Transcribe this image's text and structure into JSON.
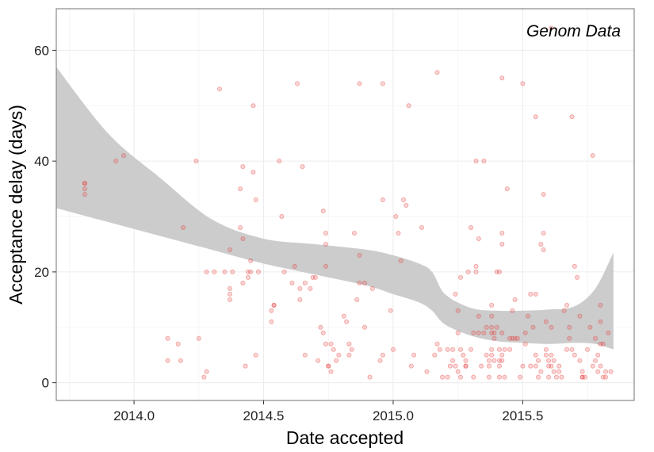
{
  "chart_data": {
    "type": "scatter",
    "xlabel": "Date accepted",
    "ylabel": "Acceptance delay (days)",
    "annotation": "Genom Data",
    "xlim": [
      2013.7,
      2015.93
    ],
    "ylim": [
      -3.2,
      67.5
    ],
    "x_ticks": [
      2014.0,
      2014.5,
      2015.0,
      2015.5
    ],
    "x_tick_labels": [
      "2014.0",
      "2014.5",
      "2015.0",
      "2015.5"
    ],
    "y_ticks": [
      0,
      20,
      40,
      60
    ],
    "y_tick_labels": [
      "0",
      "20",
      "40",
      "60"
    ],
    "grid": true,
    "colors": {
      "points": "#e8413e",
      "band": "#cccccc",
      "panel_border": "#888888",
      "grid": "#ececec"
    },
    "series": [
      {
        "points": [
          [
            2013.81,
            36
          ],
          [
            2013.81,
            35
          ],
          [
            2013.81,
            34
          ],
          [
            2013.81,
            36
          ],
          [
            2013.93,
            40
          ],
          [
            2013.96,
            41
          ],
          [
            2014.13,
            8
          ],
          [
            2014.13,
            4
          ],
          [
            2014.17,
            7
          ],
          [
            2014.18,
            4
          ],
          [
            2014.19,
            28
          ],
          [
            2014.24,
            40
          ],
          [
            2014.25,
            8
          ],
          [
            2014.27,
            1
          ],
          [
            2014.28,
            20
          ],
          [
            2014.28,
            2
          ],
          [
            2014.31,
            20
          ],
          [
            2014.33,
            53
          ],
          [
            2014.35,
            20
          ],
          [
            2014.37,
            24
          ],
          [
            2014.37,
            17
          ],
          [
            2014.37,
            15
          ],
          [
            2014.37,
            16
          ],
          [
            2014.38,
            20
          ],
          [
            2014.41,
            35
          ],
          [
            2014.41,
            28
          ],
          [
            2014.42,
            39
          ],
          [
            2014.42,
            26
          ],
          [
            2014.42,
            18
          ],
          [
            2014.43,
            3
          ],
          [
            2014.44,
            20
          ],
          [
            2014.44,
            19
          ],
          [
            2014.45,
            20
          ],
          [
            2014.45,
            22
          ],
          [
            2014.46,
            50
          ],
          [
            2014.46,
            38
          ],
          [
            2014.47,
            33
          ],
          [
            2014.47,
            5
          ],
          [
            2014.48,
            20
          ],
          [
            2014.53,
            13
          ],
          [
            2014.53,
            11
          ],
          [
            2014.54,
            14
          ],
          [
            2014.54,
            14
          ],
          [
            2014.56,
            40
          ],
          [
            2014.57,
            30
          ],
          [
            2014.58,
            20
          ],
          [
            2014.61,
            18
          ],
          [
            2014.62,
            21
          ],
          [
            2014.63,
            54
          ],
          [
            2014.64,
            17
          ],
          [
            2014.64,
            15
          ],
          [
            2014.65,
            39
          ],
          [
            2014.66,
            18
          ],
          [
            2014.66,
            5
          ],
          [
            2014.68,
            17
          ],
          [
            2014.69,
            19
          ],
          [
            2014.7,
            19
          ],
          [
            2014.71,
            4
          ],
          [
            2014.72,
            10
          ],
          [
            2014.73,
            31
          ],
          [
            2014.73,
            9
          ],
          [
            2014.74,
            21
          ],
          [
            2014.74,
            27
          ],
          [
            2014.74,
            25
          ],
          [
            2014.74,
            7
          ],
          [
            2014.75,
            3
          ],
          [
            2014.75,
            3
          ],
          [
            2014.76,
            2
          ],
          [
            2014.76,
            7
          ],
          [
            2014.77,
            6
          ],
          [
            2014.78,
            4
          ],
          [
            2014.79,
            5
          ],
          [
            2014.81,
            12
          ],
          [
            2014.82,
            11
          ],
          [
            2014.83,
            5
          ],
          [
            2014.83,
            7
          ],
          [
            2014.84,
            6
          ],
          [
            2014.85,
            27
          ],
          [
            2014.86,
            15
          ],
          [
            2014.87,
            23
          ],
          [
            2014.87,
            18
          ],
          [
            2014.87,
            54
          ],
          [
            2014.89,
            18
          ],
          [
            2014.89,
            10
          ],
          [
            2014.91,
            1
          ],
          [
            2014.92,
            17
          ],
          [
            2014.95,
            4
          ],
          [
            2014.96,
            33
          ],
          [
            2014.96,
            5
          ],
          [
            2014.96,
            54
          ],
          [
            2014.99,
            13
          ],
          [
            2015.0,
            6
          ],
          [
            2015.01,
            30
          ],
          [
            2015.02,
            27
          ],
          [
            2015.03,
            22
          ],
          [
            2015.04,
            33
          ],
          [
            2015.05,
            32
          ],
          [
            2015.06,
            50
          ],
          [
            2015.07,
            3
          ],
          [
            2015.08,
            5
          ],
          [
            2015.11,
            28
          ],
          [
            2015.13,
            2
          ],
          [
            2015.16,
            5
          ],
          [
            2015.17,
            56
          ],
          [
            2015.17,
            7
          ],
          [
            2015.18,
            6
          ],
          [
            2015.19,
            1
          ],
          [
            2015.21,
            1
          ],
          [
            2015.21,
            6
          ],
          [
            2015.22,
            3
          ],
          [
            2015.23,
            4
          ],
          [
            2015.23,
            6
          ],
          [
            2015.24,
            16
          ],
          [
            2015.24,
            3
          ],
          [
            2015.25,
            13
          ],
          [
            2015.25,
            9
          ],
          [
            2015.25,
            2
          ],
          [
            2015.26,
            1
          ],
          [
            2015.26,
            19
          ],
          [
            2015.26,
            6
          ],
          [
            2015.27,
            5
          ],
          [
            2015.28,
            4
          ],
          [
            2015.28,
            3
          ],
          [
            2015.28,
            3
          ],
          [
            2015.29,
            20
          ],
          [
            2015.3,
            28
          ],
          [
            2015.3,
            6
          ],
          [
            2015.31,
            9
          ],
          [
            2015.31,
            1
          ],
          [
            2015.32,
            40
          ],
          [
            2015.32,
            21
          ],
          [
            2015.32,
            20
          ],
          [
            2015.33,
            12
          ],
          [
            2015.33,
            26
          ],
          [
            2015.33,
            9
          ],
          [
            2015.34,
            3
          ],
          [
            2015.35,
            40
          ],
          [
            2015.35,
            9
          ],
          [
            2015.36,
            5
          ],
          [
            2015.36,
            10
          ],
          [
            2015.37,
            4
          ],
          [
            2015.37,
            3
          ],
          [
            2015.37,
            1
          ],
          [
            2015.38,
            14
          ],
          [
            2015.38,
            12
          ],
          [
            2015.38,
            10
          ],
          [
            2015.38,
            9
          ],
          [
            2015.38,
            6
          ],
          [
            2015.38,
            5
          ],
          [
            2015.39,
            9
          ],
          [
            2015.39,
            8
          ],
          [
            2015.39,
            4
          ],
          [
            2015.4,
            20
          ],
          [
            2015.4,
            10
          ],
          [
            2015.41,
            20
          ],
          [
            2015.41,
            6
          ],
          [
            2015.41,
            4
          ],
          [
            2015.41,
            3
          ],
          [
            2015.41,
            1
          ],
          [
            2015.42,
            55
          ],
          [
            2015.42,
            27
          ],
          [
            2015.42,
            25
          ],
          [
            2015.42,
            9
          ],
          [
            2015.42,
            5
          ],
          [
            2015.42,
            4
          ],
          [
            2015.43,
            1
          ],
          [
            2015.43,
            6
          ],
          [
            2015.44,
            35
          ],
          [
            2015.45,
            8
          ],
          [
            2015.45,
            6
          ],
          [
            2015.46,
            13
          ],
          [
            2015.46,
            8
          ],
          [
            2015.47,
            15
          ],
          [
            2015.47,
            8
          ],
          [
            2015.48,
            8
          ],
          [
            2015.49,
            1
          ],
          [
            2015.5,
            54
          ],
          [
            2015.5,
            3
          ],
          [
            2015.51,
            9
          ],
          [
            2015.51,
            7
          ],
          [
            2015.52,
            12
          ],
          [
            2015.53,
            16
          ],
          [
            2015.53,
            3
          ],
          [
            2015.54,
            10
          ],
          [
            2015.55,
            16
          ],
          [
            2015.55,
            48
          ],
          [
            2015.55,
            5
          ],
          [
            2015.55,
            3
          ],
          [
            2015.56,
            4
          ],
          [
            2015.56,
            1
          ],
          [
            2015.57,
            25
          ],
          [
            2015.57,
            2
          ],
          [
            2015.58,
            34
          ],
          [
            2015.58,
            27
          ],
          [
            2015.58,
            24
          ],
          [
            2015.59,
            11
          ],
          [
            2015.59,
            6
          ],
          [
            2015.59,
            5
          ],
          [
            2015.6,
            4
          ],
          [
            2015.6,
            3
          ],
          [
            2015.6,
            1
          ],
          [
            2015.61,
            10
          ],
          [
            2015.61,
            5
          ],
          [
            2015.61,
            3
          ],
          [
            2015.62,
            2
          ],
          [
            2015.62,
            4
          ],
          [
            2015.63,
            1
          ],
          [
            2015.64,
            3
          ],
          [
            2015.64,
            2
          ],
          [
            2015.65,
            1
          ],
          [
            2015.66,
            13
          ],
          [
            2015.67,
            14
          ],
          [
            2015.67,
            6
          ],
          [
            2015.68,
            10
          ],
          [
            2015.68,
            8
          ],
          [
            2015.69,
            48
          ],
          [
            2015.69,
            6
          ],
          [
            2015.7,
            5
          ],
          [
            2015.7,
            21
          ],
          [
            2015.71,
            19
          ],
          [
            2015.72,
            12
          ],
          [
            2015.72,
            4
          ],
          [
            2015.73,
            1
          ],
          [
            2015.73,
            1
          ],
          [
            2015.73,
            2
          ],
          [
            2015.74,
            1
          ],
          [
            2015.75,
            6
          ],
          [
            2015.76,
            10
          ],
          [
            2015.77,
            41
          ],
          [
            2015.77,
            3
          ],
          [
            2015.78,
            8
          ],
          [
            2015.78,
            4
          ],
          [
            2015.79,
            5
          ],
          [
            2015.79,
            2
          ],
          [
            2015.8,
            14
          ],
          [
            2015.8,
            11
          ],
          [
            2015.8,
            7
          ],
          [
            2015.8,
            3
          ],
          [
            2015.81,
            7
          ],
          [
            2015.81,
            1
          ],
          [
            2015.82,
            2
          ],
          [
            2015.82,
            1
          ],
          [
            2015.83,
            9
          ],
          [
            2015.84,
            2
          ],
          [
            2015.61,
            64
          ]
        ]
      }
    ],
    "smooth": {
      "band_x": [
        2013.7,
        2013.9,
        2014.1,
        2014.3,
        2014.5,
        2014.7,
        2014.9,
        2015.0,
        2015.1,
        2015.15,
        2015.2,
        2015.3,
        2015.4,
        2015.5,
        2015.6,
        2015.7,
        2015.78,
        2015.85
      ],
      "band_lower": [
        31.5,
        29.0,
        26.5,
        24.0,
        21.5,
        19.5,
        17.5,
        16.0,
        14.5,
        13.0,
        10.5,
        8.5,
        7.5,
        7.2,
        7.0,
        7.2,
        7.0,
        6.0
      ],
      "band_upper": [
        57.0,
        45.0,
        37.0,
        29.5,
        26.0,
        25.0,
        24.0,
        23.0,
        21.5,
        20.0,
        16.0,
        13.5,
        13.0,
        13.0,
        13.2,
        13.8,
        17.0,
        23.5
      ]
    }
  }
}
